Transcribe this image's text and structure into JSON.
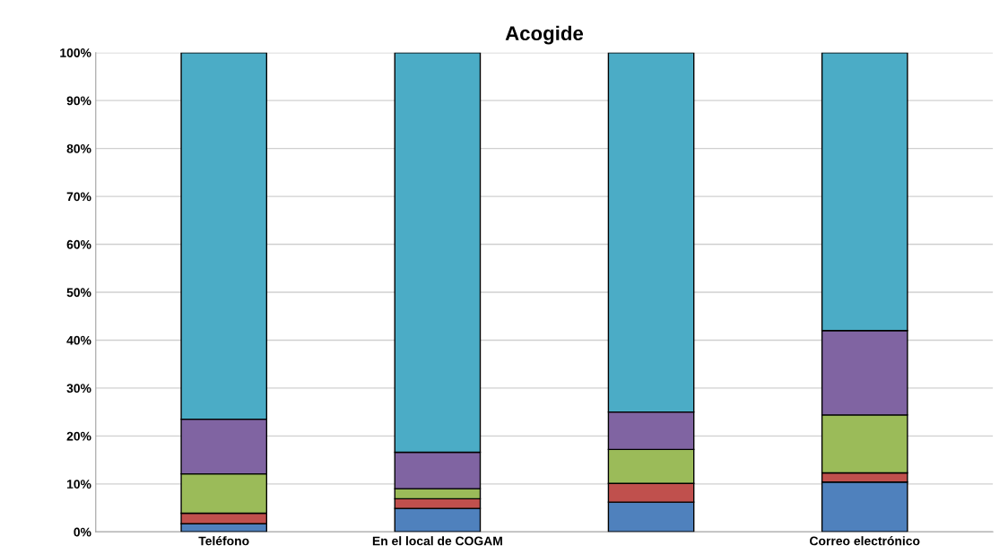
{
  "chart_data": {
    "type": "bar",
    "title": "Acogide",
    "stacked": true,
    "grid": "y",
    "legend": false,
    "categories": [
      "Teléfono",
      "En el local de COGAM",
      null,
      "Correo electrónico"
    ],
    "series": [
      {
        "color": "#4f81bd",
        "values": [
          1.7,
          4.9,
          6.2,
          10.4
        ]
      },
      {
        "color": "#c0504d",
        "values": [
          2.2,
          2.0,
          3.9,
          1.9
        ]
      },
      {
        "color": "#9bbb59",
        "values": [
          8.2,
          2.1,
          7.1,
          12.1
        ]
      },
      {
        "color": "#8064a2",
        "values": [
          11.4,
          7.6,
          7.8,
          17.6
        ]
      },
      {
        "color": "#4bacc6",
        "values": [
          76.5,
          83.4,
          75.0,
          58.0
        ]
      }
    ],
    "ylim": [
      0,
      100
    ],
    "yticks": [
      {
        "value": 0,
        "label": "0%"
      },
      {
        "value": 10,
        "label": "10%"
      },
      {
        "value": 20,
        "label": "20%"
      },
      {
        "value": 30,
        "label": "30%"
      },
      {
        "value": 40,
        "label": "40%"
      },
      {
        "value": 50,
        "label": "50%"
      },
      {
        "value": 60,
        "label": "60%"
      },
      {
        "value": 70,
        "label": "70%"
      },
      {
        "value": 80,
        "label": "80%"
      },
      {
        "value": 90,
        "label": "90%"
      },
      {
        "value": 100,
        "label": "100%"
      }
    ]
  }
}
